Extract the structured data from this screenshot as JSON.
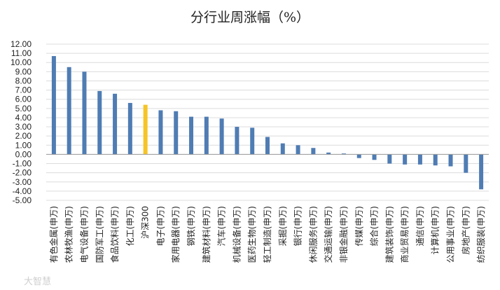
{
  "chart_data": {
    "type": "bar",
    "title": "分行业周涨幅（%）",
    "ylim": [
      -5.0,
      12.0
    ],
    "ytick_step": 1.0,
    "yticks": [
      "12.00",
      "11.00",
      "10.00",
      "9.00",
      "8.00",
      "7.00",
      "6.00",
      "5.00",
      "4.00",
      "3.00",
      "2.00",
      "1.00",
      "0.00",
      "-1.00",
      "-2.00",
      "-3.00",
      "-4.00",
      "-5.00"
    ],
    "grid": true,
    "categories": [
      "有色金属(申万)",
      "农林牧渔(申万)",
      "电气设备(申万)",
      "国防军工(申万)",
      "食品饮料(申万)",
      "化工(申万)",
      "沪深300",
      "电子(申万)",
      "家用电器(申万)",
      "钢铁(申万)",
      "建筑材料(申万)",
      "汽车(申万)",
      "机械设备(申万)",
      "医药生物(申万)",
      "轻工制造(申万)",
      "采掘(申万)",
      "银行(申万)",
      "休闲服务(申万)",
      "交通运输(申万)",
      "非银金融(申万)",
      "传媒(申万)",
      "综合(申万)",
      "建筑装饰(申万)",
      "商业贸易(申万)",
      "通信(申万)",
      "计算机(申万)",
      "公用事业(申万)",
      "房地产(申万)",
      "纺织服装(申万)"
    ],
    "values": [
      10.7,
      9.5,
      9.0,
      6.9,
      6.6,
      5.6,
      5.4,
      4.8,
      4.7,
      4.1,
      4.1,
      3.9,
      3.0,
      2.9,
      1.9,
      1.2,
      1.0,
      0.7,
      0.2,
      0.1,
      -0.4,
      -0.6,
      -1.0,
      -1.1,
      -1.1,
      -1.2,
      -1.3,
      -2.0,
      -3.8
    ],
    "highlight_index": 6,
    "colors": {
      "bar": "#4f7cb3",
      "highlight": "#f5c426"
    }
  },
  "watermark": "大智慧"
}
